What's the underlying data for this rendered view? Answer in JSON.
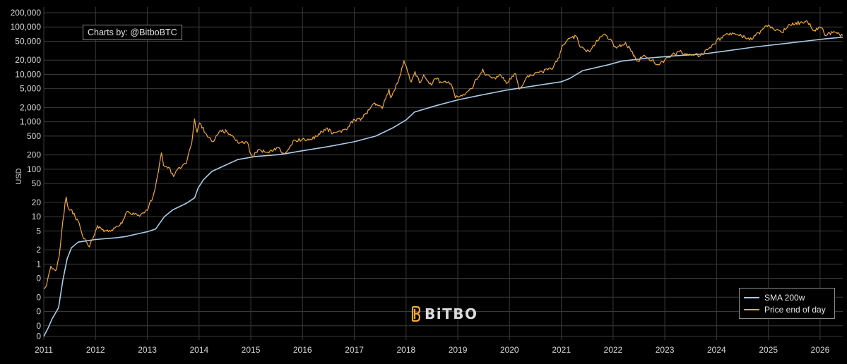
{
  "credit_text": "Charts by: @BitboBTC",
  "logo_text": "BiTBO",
  "colors": {
    "sma": "#a9cbe8",
    "price": "#f2a93b",
    "grid": "#3a3a3a",
    "background": "#000000"
  },
  "chart_data": {
    "type": "line",
    "ylabel": "USD",
    "yscale": "log",
    "xlim": [
      "2011-01-01",
      "2026-06-10"
    ],
    "ylim": [
      0.025,
      200000
    ],
    "grid": true,
    "legend_placement": "bottom-right",
    "x_ticks": [
      "2011",
      "2012",
      "2013",
      "2014",
      "2015",
      "2016",
      "2017",
      "2018",
      "2019",
      "2020",
      "2021",
      "2022",
      "2023",
      "2024",
      "2025",
      "2026"
    ],
    "y_ticks": [
      {
        "value": 0.03,
        "label": "0"
      },
      {
        "value": 0.05,
        "label": "0"
      },
      {
        "value": 0.1,
        "label": "0"
      },
      {
        "value": 0.2,
        "label": "0"
      },
      {
        "value": 0.5,
        "label": "0"
      },
      {
        "value": 1,
        "label": "1"
      },
      {
        "value": 2,
        "label": "2"
      },
      {
        "value": 5,
        "label": "5"
      },
      {
        "value": 10,
        "label": "10"
      },
      {
        "value": 20,
        "label": "20"
      },
      {
        "value": 50,
        "label": "50"
      },
      {
        "value": 100,
        "label": "100"
      },
      {
        "value": 200,
        "label": "200"
      },
      {
        "value": 500,
        "label": "500"
      },
      {
        "value": 1000,
        "label": "1,000"
      },
      {
        "value": 2000,
        "label": "2,000"
      },
      {
        "value": 5000,
        "label": "5,000"
      },
      {
        "value": 10000,
        "label": "10,000"
      },
      {
        "value": 20000,
        "label": "20,000"
      },
      {
        "value": 50000,
        "label": "50,000"
      },
      {
        "value": 100000,
        "label": "100,000"
      },
      {
        "value": 200000,
        "label": "200,000"
      }
    ],
    "series": [
      {
        "name": "SMA 200w",
        "points": [
          [
            "2011-01-01",
            0.03
          ],
          [
            "2011-02-01",
            0.045
          ],
          [
            "2011-03-01",
            0.07
          ],
          [
            "2011-04-15",
            0.12
          ],
          [
            "2011-05-15",
            0.45
          ],
          [
            "2011-06-15",
            1.3
          ],
          [
            "2011-07-15",
            2.2
          ],
          [
            "2011-09-01",
            2.9
          ],
          [
            "2011-11-01",
            3.1
          ],
          [
            "2012-01-01",
            3.3
          ],
          [
            "2012-06-01",
            3.6
          ],
          [
            "2012-08-01",
            3.8
          ],
          [
            "2012-11-01",
            4.4
          ],
          [
            "2013-01-01",
            4.8
          ],
          [
            "2013-03-01",
            5.5
          ],
          [
            "2013-05-01",
            10
          ],
          [
            "2013-07-01",
            14
          ],
          [
            "2013-10-01",
            19
          ],
          [
            "2013-12-01",
            25
          ],
          [
            "2013-12-25",
            40
          ],
          [
            "2014-02-01",
            60
          ],
          [
            "2014-04-01",
            90
          ],
          [
            "2014-07-01",
            120
          ],
          [
            "2014-10-01",
            160
          ],
          [
            "2015-02-01",
            185
          ],
          [
            "2015-08-01",
            205
          ],
          [
            "2016-01-01",
            245
          ],
          [
            "2016-07-01",
            300
          ],
          [
            "2017-01-01",
            380
          ],
          [
            "2017-06-01",
            500
          ],
          [
            "2017-10-01",
            750
          ],
          [
            "2018-01-01",
            1100
          ],
          [
            "2018-03-01",
            1600
          ],
          [
            "2018-08-01",
            2200
          ],
          [
            "2019-01-01",
            2900
          ],
          [
            "2019-06-01",
            3600
          ],
          [
            "2019-12-01",
            4600
          ],
          [
            "2020-06-01",
            5600
          ],
          [
            "2021-01-01",
            7000
          ],
          [
            "2021-03-01",
            8200
          ],
          [
            "2021-06-01",
            12000
          ],
          [
            "2021-12-01",
            16000
          ],
          [
            "2022-03-01",
            19000
          ],
          [
            "2022-09-01",
            22000
          ],
          [
            "2023-03-01",
            24500
          ],
          [
            "2023-10-01",
            27000
          ],
          [
            "2024-03-01",
            31000
          ],
          [
            "2024-10-01",
            38000
          ],
          [
            "2025-06-01",
            46000
          ],
          [
            "2026-02-01",
            56000
          ],
          [
            "2026-06-10",
            61000
          ]
        ]
      },
      {
        "name": "Price end of day",
        "points": [
          [
            "2011-01-01",
            0.3
          ],
          [
            "2011-01-20",
            0.35
          ],
          [
            "2011-02-05",
            0.6
          ],
          [
            "2011-02-20",
            0.9
          ],
          [
            "2011-03-10",
            0.8
          ],
          [
            "2011-04-01",
            0.78
          ],
          [
            "2011-04-20",
            1.5
          ],
          [
            "2011-05-15",
            8
          ],
          [
            "2011-06-08",
            26
          ],
          [
            "2011-06-20",
            16
          ],
          [
            "2011-07-10",
            14
          ],
          [
            "2011-08-10",
            10
          ],
          [
            "2011-09-01",
            8
          ],
          [
            "2011-10-01",
            4
          ],
          [
            "2011-11-18",
            2.3
          ],
          [
            "2012-01-01",
            5
          ],
          [
            "2012-01-15",
            6.5
          ],
          [
            "2012-03-01",
            4.8
          ],
          [
            "2012-05-01",
            5.1
          ],
          [
            "2012-06-20",
            6.5
          ],
          [
            "2012-08-17",
            13
          ],
          [
            "2012-09-15",
            11
          ],
          [
            "2012-11-15",
            11
          ],
          [
            "2013-01-01",
            13.5
          ],
          [
            "2013-02-15",
            30
          ],
          [
            "2013-03-20",
            90
          ],
          [
            "2013-04-10",
            220
          ],
          [
            "2013-04-25",
            120
          ],
          [
            "2013-06-01",
            110
          ],
          [
            "2013-07-05",
            70
          ],
          [
            "2013-08-15",
            110
          ],
          [
            "2013-10-01",
            130
          ],
          [
            "2013-11-10",
            350
          ],
          [
            "2013-11-30",
            1150
          ],
          [
            "2013-12-18",
            600
          ],
          [
            "2014-01-05",
            950
          ],
          [
            "2014-02-15",
            580
          ],
          [
            "2014-04-10",
            380
          ],
          [
            "2014-06-01",
            650
          ],
          [
            "2014-07-15",
            620
          ],
          [
            "2014-09-01",
            480
          ],
          [
            "2014-10-10",
            350
          ],
          [
            "2014-12-01",
            380
          ],
          [
            "2015-01-14",
            180
          ],
          [
            "2015-03-01",
            260
          ],
          [
            "2015-05-01",
            230
          ],
          [
            "2015-07-10",
            290
          ],
          [
            "2015-08-25",
            210
          ],
          [
            "2015-11-04",
            410
          ],
          [
            "2016-01-01",
            430
          ],
          [
            "2016-03-01",
            420
          ],
          [
            "2016-06-17",
            740
          ],
          [
            "2016-08-01",
            560
          ],
          [
            "2016-11-01",
            700
          ],
          [
            "2017-01-04",
            1100
          ],
          [
            "2017-03-01",
            1200
          ],
          [
            "2017-05-25",
            2500
          ],
          [
            "2017-07-16",
            1900
          ],
          [
            "2017-09-02",
            4900
          ],
          [
            "2017-09-15",
            3200
          ],
          [
            "2017-11-08",
            7300
          ],
          [
            "2017-12-17",
            19500
          ],
          [
            "2018-02-06",
            6900
          ],
          [
            "2018-03-05",
            11500
          ],
          [
            "2018-04-06",
            6600
          ],
          [
            "2018-05-05",
            9800
          ],
          [
            "2018-06-29",
            5900
          ],
          [
            "2018-07-25",
            8200
          ],
          [
            "2018-09-01",
            7000
          ],
          [
            "2018-11-14",
            6300
          ],
          [
            "2018-12-15",
            3200
          ],
          [
            "2019-02-01",
            3500
          ],
          [
            "2019-04-05",
            5000
          ],
          [
            "2019-05-26",
            8700
          ],
          [
            "2019-06-26",
            13000
          ],
          [
            "2019-07-15",
            9500
          ],
          [
            "2019-09-25",
            8000
          ],
          [
            "2019-10-26",
            10000
          ],
          [
            "2019-12-18",
            6600
          ],
          [
            "2020-02-13",
            10300
          ],
          [
            "2020-03-12",
            4900
          ],
          [
            "2020-05-01",
            8700
          ],
          [
            "2020-07-27",
            11000
          ],
          [
            "2020-10-21",
            12900
          ],
          [
            "2020-12-17",
            22800
          ],
          [
            "2021-01-08",
            41000
          ],
          [
            "2021-02-20",
            57000
          ],
          [
            "2021-04-14",
            64000
          ],
          [
            "2021-05-19",
            37000
          ],
          [
            "2021-07-20",
            29800
          ],
          [
            "2021-09-06",
            52000
          ],
          [
            "2021-11-10",
            68000
          ],
          [
            "2022-01-24",
            36000
          ],
          [
            "2022-03-30",
            47500
          ],
          [
            "2022-06-18",
            19000
          ],
          [
            "2022-08-15",
            24400
          ],
          [
            "2022-11-21",
            15800
          ],
          [
            "2023-01-31",
            23100
          ],
          [
            "2023-04-14",
            30400
          ],
          [
            "2023-06-15",
            25000
          ],
          [
            "2023-09-11",
            25100
          ],
          [
            "2023-12-08",
            44000
          ],
          [
            "2024-03-13",
            73000
          ],
          [
            "2024-06-01",
            67700
          ],
          [
            "2024-09-06",
            53900
          ],
          [
            "2024-12-17",
            106000
          ],
          [
            "2025-04-08",
            76300
          ],
          [
            "2025-05-22",
            111000
          ],
          [
            "2025-08-14",
            124000
          ],
          [
            "2025-10-06",
            125000
          ],
          [
            "2025-11-21",
            84000
          ],
          [
            "2026-01-14",
            96000
          ],
          [
            "2026-02-05",
            66000
          ],
          [
            "2026-04-15",
            78000
          ],
          [
            "2026-06-10",
            66000
          ]
        ]
      }
    ]
  }
}
